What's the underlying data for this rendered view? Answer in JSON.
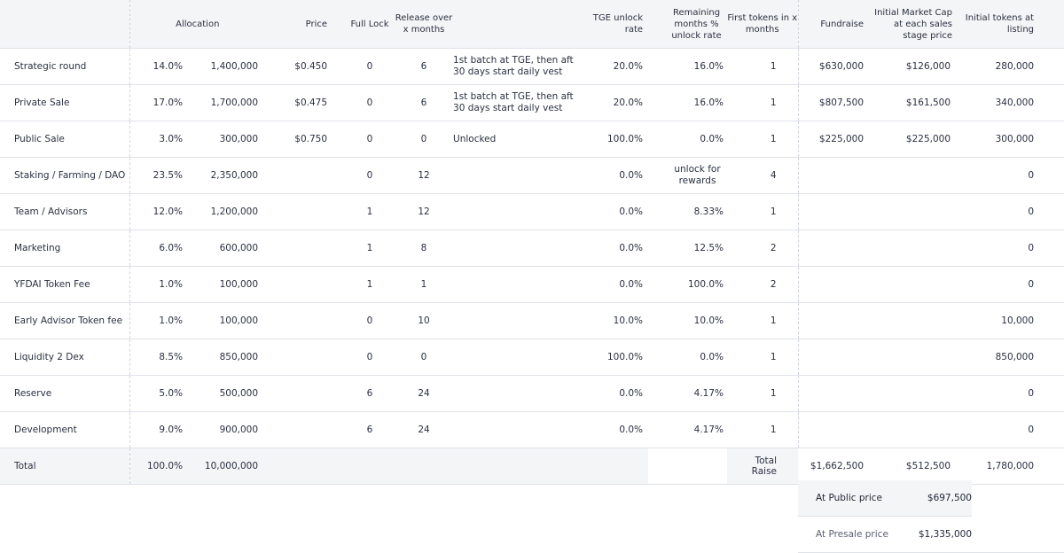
{
  "headers": {
    "allocation": "Allocation",
    "price": "Price",
    "full_lock": "Full Lock",
    "release": "Release over x months",
    "tge": "TGE unlock rate",
    "remaining": "Remaining months % unlock rate",
    "first_tokens": "First tokens in x months",
    "fundraise": "Fundraise",
    "initial_mcap": "Initial Market Cap at each sales stage price",
    "initial_tokens": "Initial tokens at listing"
  },
  "rows": [
    {
      "name": "Strategic round",
      "pct": "14.0%",
      "amount": "1,400,000",
      "price": "$0.450",
      "lock": "0",
      "release": "6",
      "note1": "1st batch at TGE, then after",
      "note2": "30 days start daily vest",
      "tge": "20.0%",
      "rem1": "16.0%",
      "rem2": "",
      "first": "1",
      "fund": "$630,000",
      "mcap": "$126,000",
      "init": "280,000"
    },
    {
      "name": "Private Sale",
      "pct": "17.0%",
      "amount": "1,700,000",
      "price": "$0.475",
      "lock": "0",
      "release": "6",
      "note1": "1st batch at TGE, then after",
      "note2": "30 days start daily vest",
      "tge": "20.0%",
      "rem1": "16.0%",
      "rem2": "",
      "first": "1",
      "fund": "$807,500",
      "mcap": "$161,500",
      "init": "340,000"
    },
    {
      "name": "Public Sale",
      "pct": "3.0%",
      "amount": "300,000",
      "price": "$0.750",
      "lock": "0",
      "release": "0",
      "note1": "Unlocked",
      "note2": "",
      "tge": "100.0%",
      "rem1": "0.0%",
      "rem2": "",
      "first": "1",
      "fund": "$225,000",
      "mcap": "$225,000",
      "init": "300,000"
    },
    {
      "name": "Staking / Farming / DAO",
      "pct": "23.5%",
      "amount": "2,350,000",
      "price": "",
      "lock": "0",
      "release": "12",
      "note1": "",
      "note2": "",
      "tge": "0.0%",
      "rem1": "unlock for",
      "rem2": "rewards",
      "first": "4",
      "fund": "",
      "mcap": "",
      "init": "0"
    },
    {
      "name": "Team / Advisors",
      "pct": "12.0%",
      "amount": "1,200,000",
      "price": "",
      "lock": "1",
      "release": "12",
      "note1": "",
      "note2": "",
      "tge": "0.0%",
      "rem1": "8.33%",
      "rem2": "",
      "first": "1",
      "fund": "",
      "mcap": "",
      "init": "0"
    },
    {
      "name": "Marketing",
      "pct": "6.0%",
      "amount": "600,000",
      "price": "",
      "lock": "1",
      "release": "8",
      "note1": "",
      "note2": "",
      "tge": "0.0%",
      "rem1": "12.5%",
      "rem2": "",
      "first": "2",
      "fund": "",
      "mcap": "",
      "init": "0"
    },
    {
      "name": "YFDAI Token Fee",
      "pct": "1.0%",
      "amount": "100,000",
      "price": "",
      "lock": "1",
      "release": "1",
      "note1": "",
      "note2": "",
      "tge": "0.0%",
      "rem1": "100.0%",
      "rem2": "",
      "first": "2",
      "fund": "",
      "mcap": "",
      "init": "0"
    },
    {
      "name": "Early Advisor Token fee",
      "pct": "1.0%",
      "amount": "100,000",
      "price": "",
      "lock": "0",
      "release": "10",
      "note1": "",
      "note2": "",
      "tge": "10.0%",
      "rem1": "10.0%",
      "rem2": "",
      "first": "1",
      "fund": "",
      "mcap": "",
      "init": "10,000"
    },
    {
      "name": "Liquidity 2 Dex",
      "pct": "8.5%",
      "amount": "850,000",
      "price": "",
      "lock": "0",
      "release": "0",
      "note1": "",
      "note2": "",
      "tge": "100.0%",
      "rem1": "0.0%",
      "rem2": "",
      "first": "1",
      "fund": "",
      "mcap": "",
      "init": "850,000"
    },
    {
      "name": "Reserve",
      "pct": "5.0%",
      "amount": "500,000",
      "price": "",
      "lock": "6",
      "release": "24",
      "note1": "",
      "note2": "",
      "tge": "0.0%",
      "rem1": "4.17%",
      "rem2": "",
      "first": "1",
      "fund": "",
      "mcap": "",
      "init": "0"
    },
    {
      "name": "Development",
      "pct": "9.0%",
      "amount": "900,000",
      "price": "",
      "lock": "6",
      "release": "24",
      "note1": "",
      "note2": "",
      "tge": "0.0%",
      "rem1": "4.17%",
      "rem2": "",
      "first": "1",
      "fund": "",
      "mcap": "",
      "init": "0"
    }
  ],
  "total": {
    "label": "Total",
    "pct": "100.0%",
    "amount": "10,000,000",
    "raise_label": "Total Raise",
    "fund": "$1,662,500",
    "mcap": "$512,500",
    "init": "1,780,000"
  },
  "extra": {
    "public_label": "At Public price",
    "public_value": "$697,500",
    "presale_label": "At Presale price",
    "presale_value": "$1,335,000"
  }
}
